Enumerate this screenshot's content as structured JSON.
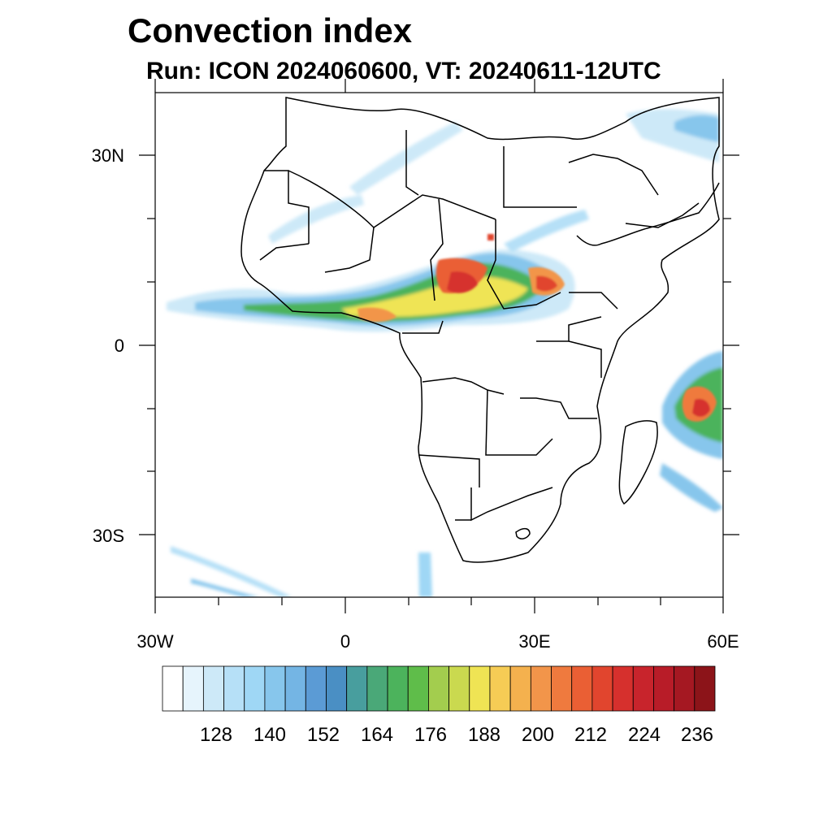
{
  "header": {
    "title": "Convection index",
    "subtitle": "Run: ICON 2024060600,  VT: 20240611-12UTC"
  },
  "axes": {
    "lat_labels": [
      "30N",
      "0",
      "30S"
    ],
    "lon_labels": [
      "30W",
      "0",
      "30E",
      "60E"
    ]
  },
  "colorbar": {
    "labels": [
      "128",
      "140",
      "152",
      "164",
      "176",
      "188",
      "200",
      "212",
      "224",
      "236"
    ],
    "colors": [
      "#ffffff",
      "#e6f4fc",
      "#cde9f8",
      "#b6e0f7",
      "#9fd7f5",
      "#87c6ec",
      "#74b5e4",
      "#5b9bd5",
      "#4a8fc4",
      "#489e9e",
      "#4aa878",
      "#4cb35c",
      "#5fbd4a",
      "#a3cd4e",
      "#cad94f",
      "#efe454",
      "#f6cc55",
      "#f4b14e",
      "#f2954a",
      "#ef7a3e",
      "#ea5f34",
      "#e1452e",
      "#d6302d",
      "#c8242c",
      "#b81c28",
      "#a51822",
      "#8c1419"
    ]
  }
}
